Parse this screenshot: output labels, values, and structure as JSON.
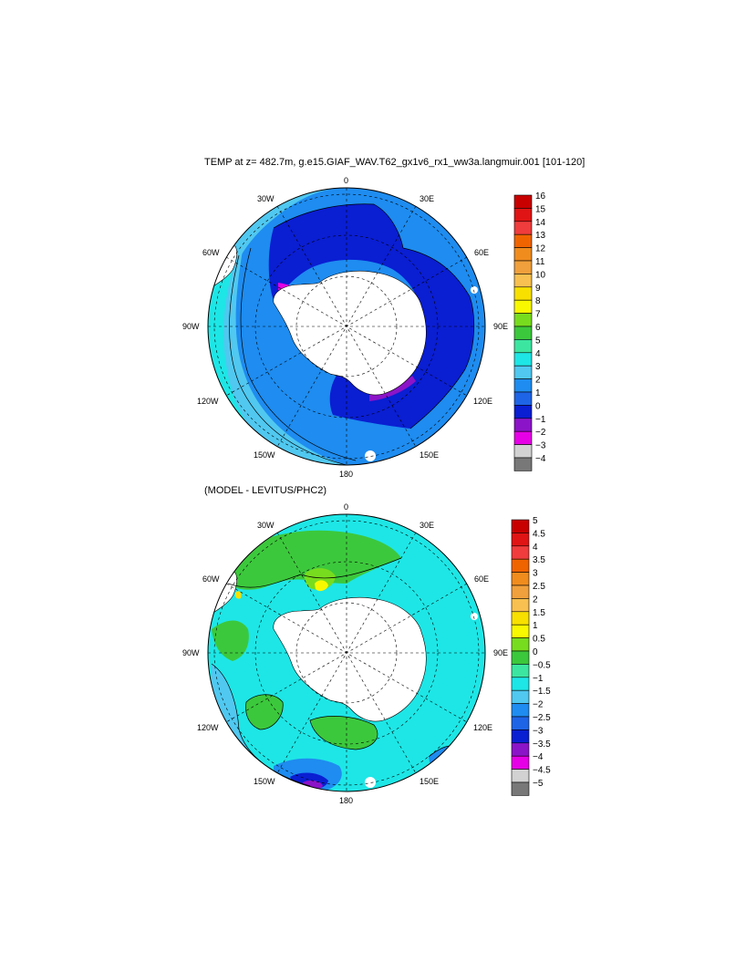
{
  "top_panel": {
    "title": "TEMP at z= 482.7m, g.e15.GIAF_WAV.T62_gx1v6_rx1_ww3a.langmuir.001 [101-120]",
    "lon_labels": [
      "0",
      "30E",
      "60E",
      "90E",
      "120E",
      "150E",
      "180",
      "150W",
      "120W",
      "90W",
      "60W",
      "30W"
    ],
    "colorbar": {
      "labels": [
        "16",
        "15",
        "14",
        "13",
        "12",
        "11",
        "10",
        "9",
        "8",
        "7",
        "6",
        "5",
        "4",
        "3",
        "2",
        "1",
        "0",
        "−1",
        "−2",
        "−3",
        "−4"
      ],
      "colors": [
        "#c80000",
        "#e01414",
        "#f03c3c",
        "#f06400",
        "#f08c1e",
        "#f0a03c",
        "#f8c050",
        "#f8e000",
        "#f8f800",
        "#78dc1e",
        "#3cc83c",
        "#3ce6a0",
        "#1ee6e6",
        "#50c8f0",
        "#1e8cf0",
        "#1e64e6",
        "#0a1ed2",
        "#8c14c8",
        "#e600e6",
        "#d2d2d2",
        "#787878"
      ]
    }
  },
  "bottom_panel": {
    "title": "(MODEL - LEVITUS/PHC2)",
    "lon_labels": [
      "0",
      "30E",
      "60E",
      "90E",
      "120E",
      "150E",
      "180",
      "150W",
      "120W",
      "90W",
      "60W",
      "30W"
    ],
    "colorbar": {
      "labels": [
        "5",
        "4.5",
        "4",
        "3.5",
        "3",
        "2.5",
        "2",
        "1.5",
        "1",
        "0.5",
        "0",
        "−0.5",
        "−1",
        "−1.5",
        "−2",
        "−2.5",
        "−3",
        "−3.5",
        "−4",
        "−4.5",
        "−5"
      ],
      "colors": [
        "#c80000",
        "#e01414",
        "#f03c3c",
        "#f06400",
        "#f08c1e",
        "#f0a03c",
        "#f8c050",
        "#f8e000",
        "#f8f800",
        "#78dc1e",
        "#3cc83c",
        "#3ce6a0",
        "#1ee6e6",
        "#50c8f0",
        "#1e8cf0",
        "#1e64e6",
        "#0a1ed2",
        "#8c14c8",
        "#e600e6",
        "#d2d2d2",
        "#787878"
      ]
    }
  },
  "colors": {
    "land": "#ffffff",
    "coast": "#000000",
    "grid": "#000000"
  }
}
